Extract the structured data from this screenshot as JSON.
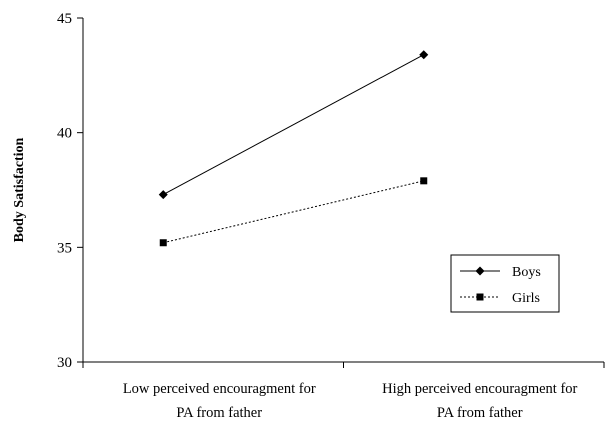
{
  "chart_data": {
    "type": "line",
    "title": "",
    "xlabel": "",
    "ylabel": "Body Satisfaction",
    "ylim": [
      30,
      45
    ],
    "yticks": [
      30,
      35,
      40,
      45
    ],
    "categories": [
      [
        "Low perceived encouragment for",
        "PA from father"
      ],
      [
        "High perceived encouragment for",
        "PA from father"
      ]
    ],
    "grid": false,
    "legend": "right",
    "series": [
      {
        "name": "Boys",
        "values": [
          37.3,
          43.4
        ],
        "marker": "diamond",
        "line": "solid",
        "color": "#000000"
      },
      {
        "name": "Girls",
        "values": [
          35.2,
          37.9
        ],
        "marker": "square",
        "line": "dotted",
        "color": "#000000"
      }
    ]
  }
}
